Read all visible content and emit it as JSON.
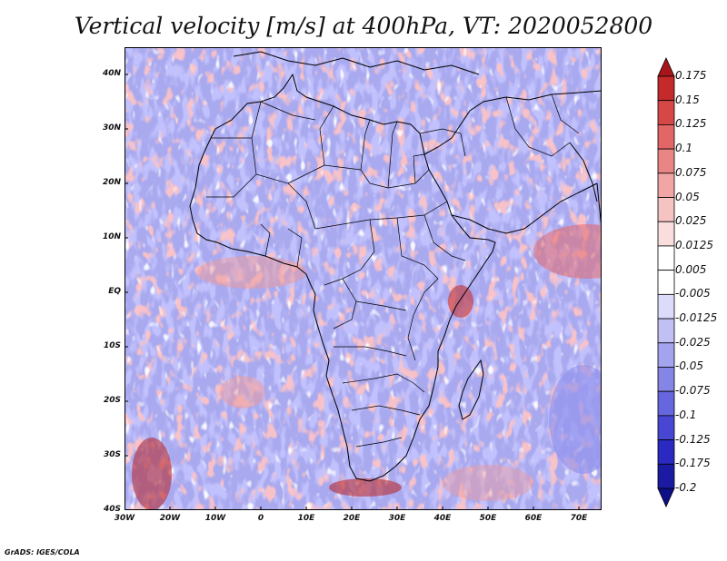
{
  "title": "Vertical velocity [m/s] at 400hPa, VT: 2020052800",
  "footer": "GrADS: IGES/COLA",
  "map": {
    "region": "Africa",
    "lon_range": [
      -30,
      75
    ],
    "lat_range": [
      -40,
      45
    ],
    "lat_ticks": [
      "40N",
      "30N",
      "20N",
      "10N",
      "EQ",
      "10S",
      "20S",
      "30S",
      "40S"
    ],
    "lon_ticks": [
      "30W",
      "20W",
      "10W",
      "0",
      "10E",
      "20E",
      "30E",
      "40E",
      "50E",
      "60E",
      "70E"
    ]
  },
  "colorbar": {
    "labels": [
      "0.175",
      "0.15",
      "0.125",
      "0.1",
      "0.075",
      "0.05",
      "0.025",
      "0.0125",
      "0.005",
      "-0.005",
      "-0.0125",
      "-0.025",
      "-0.05",
      "-0.075",
      "-0.1",
      "-0.125",
      "-0.175",
      "-0.2"
    ],
    "colors": [
      "#a8161c",
      "#c42a2a",
      "#d64747",
      "#e26666",
      "#ea8585",
      "#f1a5a5",
      "#f6c3c3",
      "#fadede",
      "#ffffff",
      "#ffffff",
      "#dcdcfa",
      "#c0c0f5",
      "#a3a3ee",
      "#8585e6",
      "#6666de",
      "#4747d3",
      "#2a2ac2",
      "#1a1aa3",
      "#0e0e88"
    ]
  }
}
